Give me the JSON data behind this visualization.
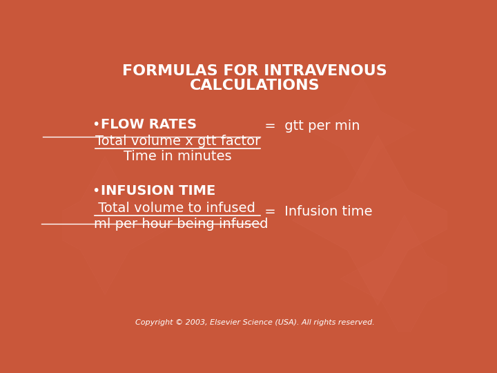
{
  "bg_color": "#C9573A",
  "title_line1": "FORMULAS FOR INTRAVENOUS",
  "title_line2": "CALCULATIONS",
  "title_color": "#FFFFFF",
  "title_fontsize": 16,
  "bullet1_header": "FLOW RATES",
  "bullet1_numerator": "Total volume x gtt factor",
  "bullet1_equals_rest": " =  gtt per min",
  "bullet1_denominator": "Time in minutes",
  "bullet2_header": "INFUSION TIME",
  "bullet2_numerator": " Total volume to infused ",
  "bullet2_equals_rest": " =  Infusion time",
  "bullet2_denominator": "ml per hour being infused",
  "text_color": "#FFFFFF",
  "body_fontsize": 14,
  "header_fontsize": 14,
  "copyright_text": "Copyright © 2003, Elsevier Science (USA). All rights reserved.",
  "copyright_fontsize": 8,
  "copyright_color": "#FFFFFF",
  "bullet_char": "•",
  "star_color_light": "#D4644C",
  "star_alpha": 0.18
}
